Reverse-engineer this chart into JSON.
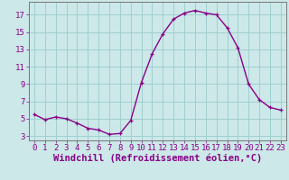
{
  "x": [
    0,
    1,
    2,
    3,
    4,
    5,
    6,
    7,
    8,
    9,
    10,
    11,
    12,
    13,
    14,
    15,
    16,
    17,
    18,
    19,
    20,
    21,
    22,
    23
  ],
  "y": [
    5.5,
    4.9,
    5.2,
    5.0,
    4.5,
    3.9,
    3.7,
    3.2,
    3.3,
    4.8,
    9.2,
    12.5,
    14.8,
    16.5,
    17.2,
    17.5,
    17.2,
    17.0,
    15.5,
    13.2,
    9.0,
    7.2,
    6.3,
    6.0
  ],
  "line_color": "#880088",
  "marker": "+",
  "bg_color": "#cce8e8",
  "grid_color": "#99cccc",
  "xlabel": "Windchill (Refroidissement éolien,°C)",
  "xlim": [
    -0.5,
    23.5
  ],
  "ylim": [
    2.5,
    18.5
  ],
  "yticks": [
    3,
    5,
    7,
    9,
    11,
    13,
    15,
    17
  ],
  "xticks": [
    0,
    1,
    2,
    3,
    4,
    5,
    6,
    7,
    8,
    9,
    10,
    11,
    12,
    13,
    14,
    15,
    16,
    17,
    18,
    19,
    20,
    21,
    22,
    23
  ],
  "xlabel_fontsize": 7.5,
  "tick_fontsize": 6.5,
  "line_width": 1.0,
  "marker_size": 3.5
}
